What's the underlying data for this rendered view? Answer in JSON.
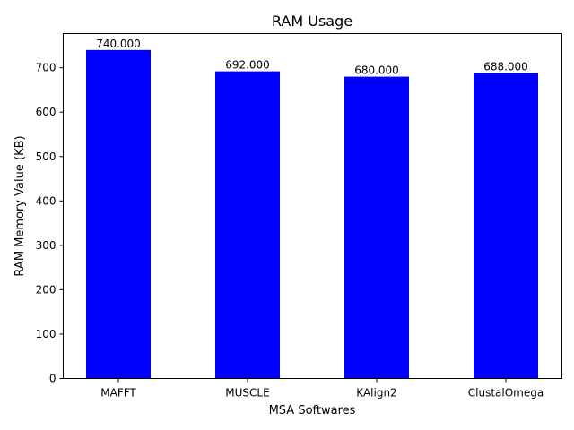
{
  "chart_data": {
    "type": "bar",
    "title": "RAM Usage",
    "xlabel": "MSA Softwares",
    "ylabel": "RAM Memory Value (KB)",
    "categories": [
      "MAFFT",
      "MUSCLE",
      "KAlign2",
      "ClustalOmega"
    ],
    "values": [
      740,
      692,
      680,
      688
    ],
    "data_labels": [
      "740.000",
      "692.000",
      "680.000",
      "688.000"
    ],
    "yticks": [
      0,
      100,
      200,
      300,
      400,
      500,
      600,
      700
    ],
    "ylim": [
      0,
      777
    ],
    "bar_color": "#0000ff",
    "grid": false
  }
}
